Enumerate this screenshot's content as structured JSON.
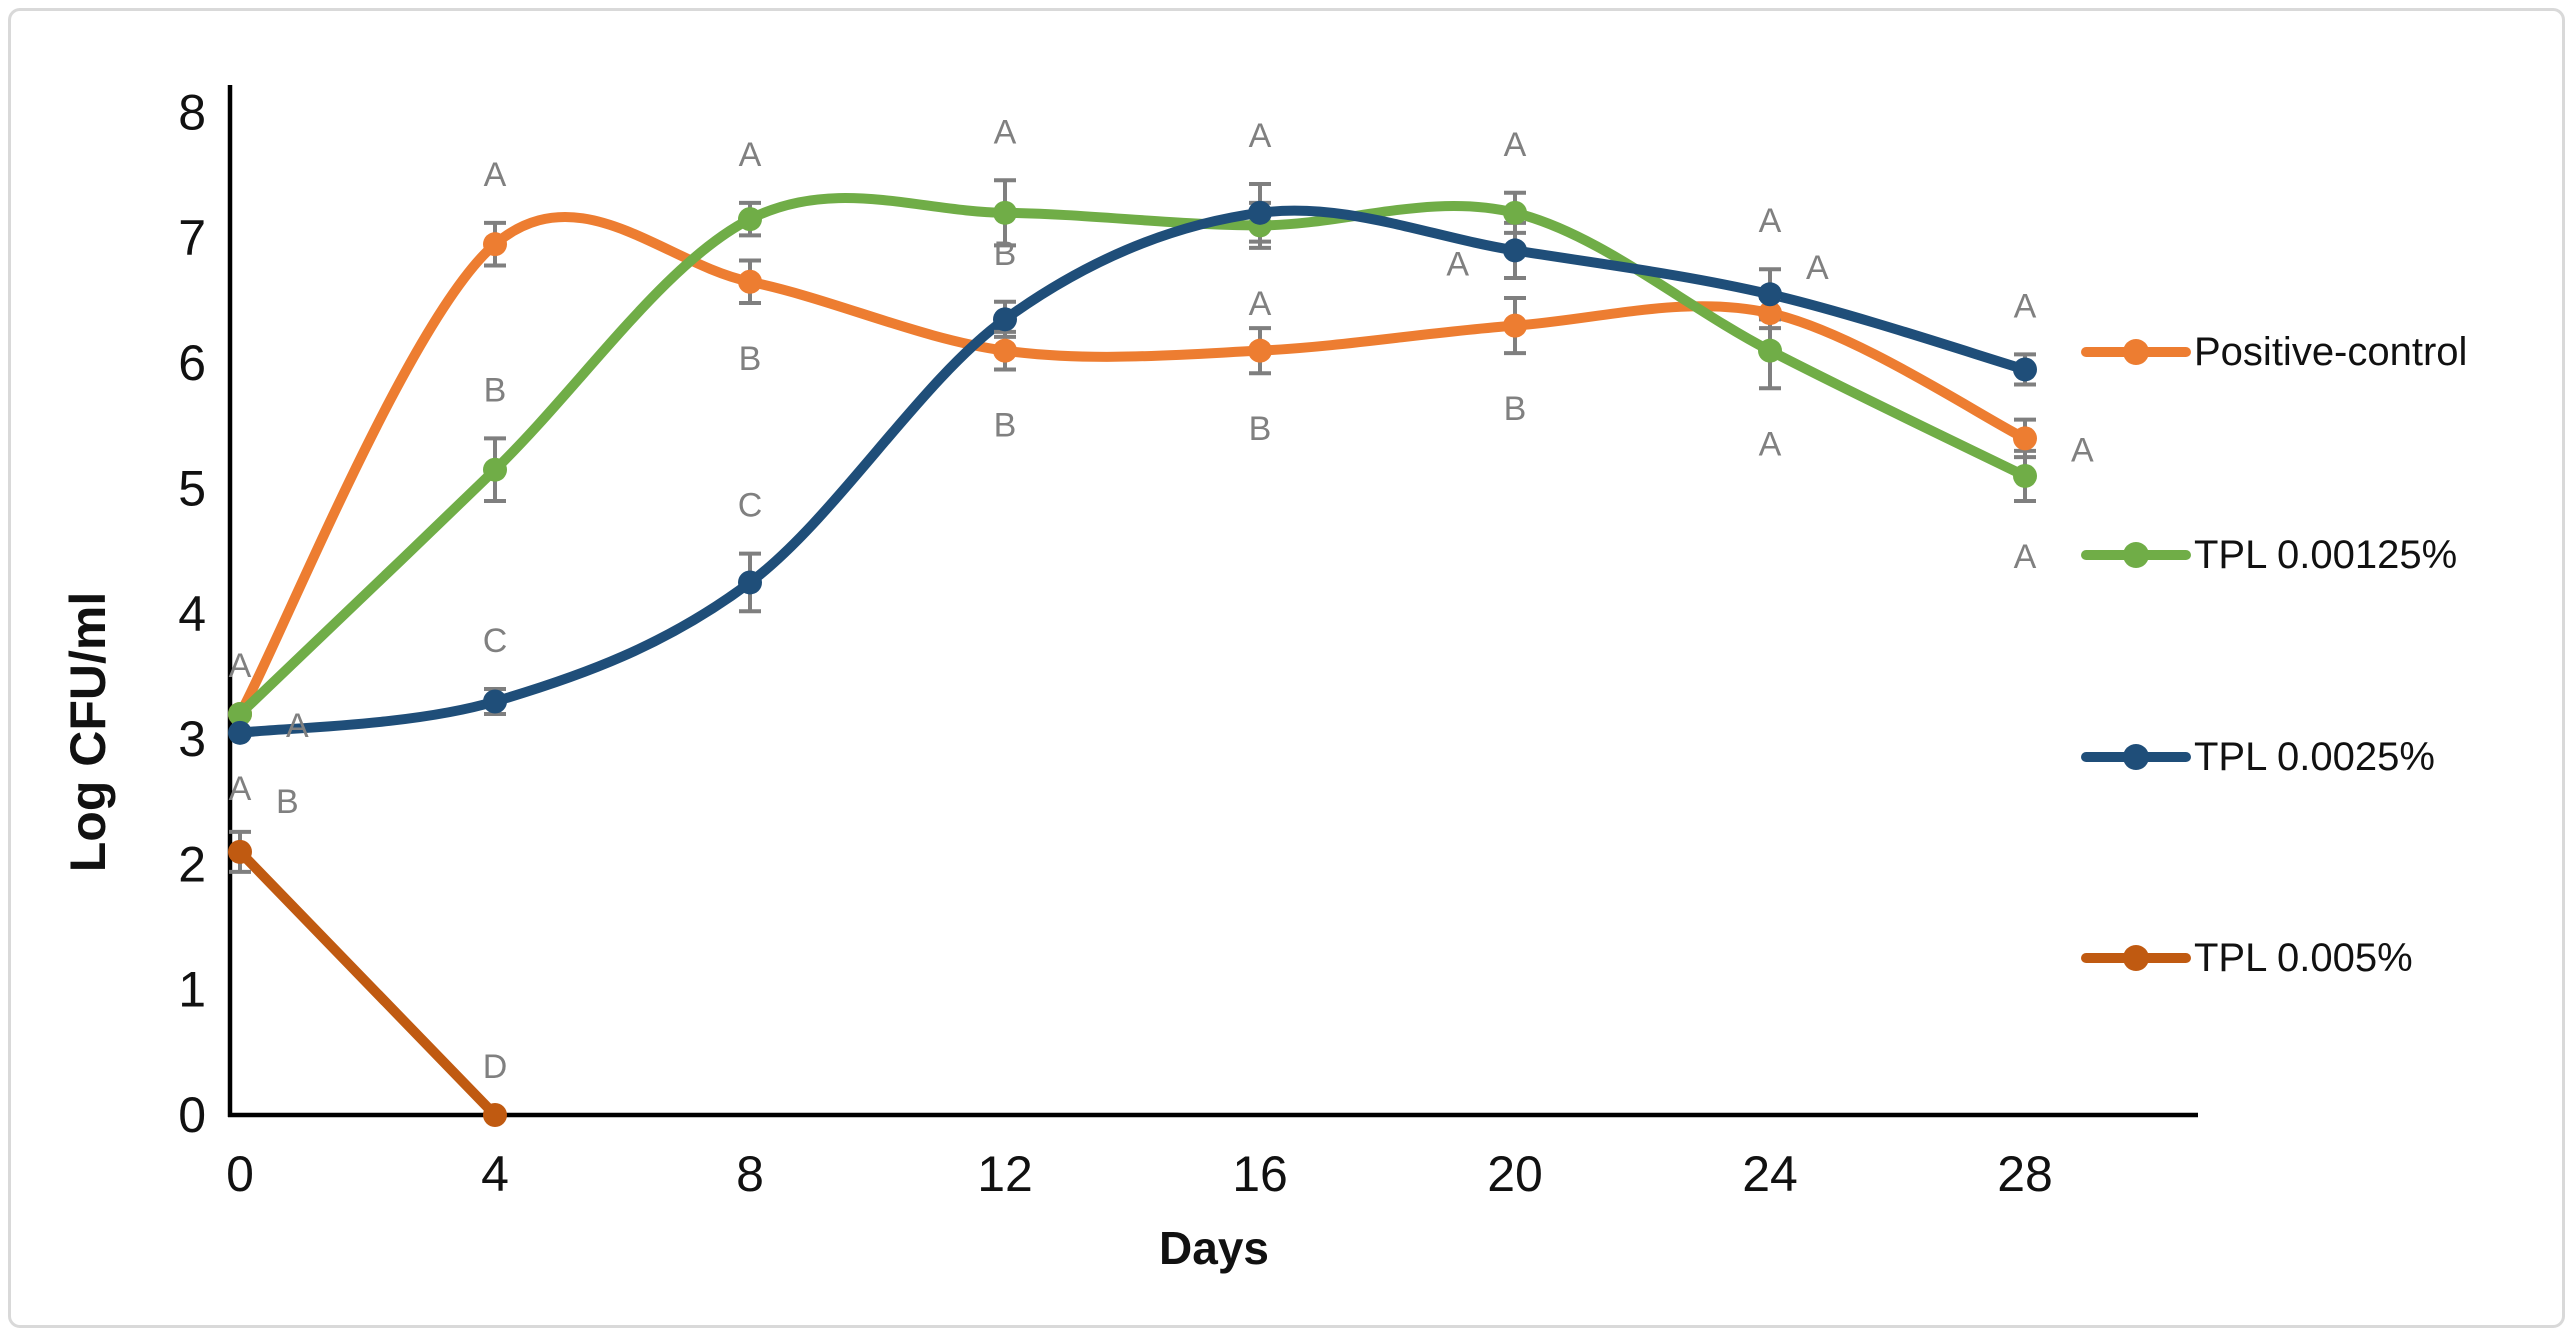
{
  "figure": {
    "background": "#ffffff",
    "frame_color": "#d9d9d9"
  },
  "chart_data": {
    "type": "line",
    "title": "",
    "xlabel": "Days",
    "ylabel": "Log CFU/ml",
    "x_ticks": [
      0,
      4,
      8,
      12,
      16,
      20,
      24,
      28
    ],
    "y_ticks": [
      0,
      1,
      2,
      3,
      4,
      5,
      6,
      7,
      8
    ],
    "ylim": [
      0,
      8
    ],
    "xlim": [
      0,
      28
    ],
    "grid": false,
    "legend_position": "right",
    "axis_color": "#000000",
    "error_bar_color": "#7f7f7f",
    "sig_letter_color": "#808080",
    "line_style": "smooth",
    "marker": "circle",
    "series": [
      {
        "name": "Positive-control",
        "color": "#ED7D31",
        "x": [
          0,
          4,
          8,
          12,
          16,
          20,
          24,
          28
        ],
        "values": [
          3.2,
          6.95,
          6.65,
          6.1,
          6.1,
          6.3,
          6.4,
          5.4
        ],
        "errors": [
          0,
          0.17,
          0.17,
          0.15,
          0.18,
          0.22,
          0.12,
          0.15
        ],
        "sig_letters": [
          "A",
          "A",
          "B",
          "B",
          "B",
          "B",
          "A",
          "A"
        ],
        "letter_placements": [
          "above",
          "above",
          "below",
          "below",
          "below",
          "below",
          "above-right",
          "right"
        ]
      },
      {
        "name": "TPL 0.00125%",
        "color": "#70AD47",
        "x": [
          0,
          4,
          8,
          12,
          16,
          20,
          24,
          28
        ],
        "values": [
          3.2,
          5.15,
          7.15,
          7.2,
          7.1,
          7.2,
          6.1,
          5.1
        ],
        "errors": [
          0,
          0.25,
          0.13,
          0.26,
          0.18,
          0.16,
          0.3,
          0.2
        ],
        "sig_letters": [
          "A",
          "B",
          "A",
          "A",
          "A",
          "A",
          "A",
          "A"
        ],
        "letter_placements": [
          "right",
          "above",
          "above",
          "above",
          "below",
          "above",
          "below",
          "below"
        ]
      },
      {
        "name": "TPL 0.0025%",
        "color": "#1F4E79",
        "x": [
          0,
          4,
          8,
          12,
          16,
          20,
          24,
          28
        ],
        "values": [
          3.05,
          3.3,
          4.25,
          6.35,
          7.2,
          6.9,
          6.55,
          5.95
        ],
        "errors": [
          0,
          0.1,
          0.23,
          0.14,
          0.23,
          0.22,
          0.2,
          0.12
        ],
        "sig_letters": [
          "A",
          "C",
          "C",
          "B",
          "A",
          "A",
          "A",
          "A"
        ],
        "letter_placements": [
          "below",
          "above",
          "above",
          "above",
          "above",
          "left",
          "above",
          "above"
        ]
      },
      {
        "name": "TPL 0.005%",
        "color": "#C05A11",
        "x": [
          0,
          4
        ],
        "values": [
          2.1,
          0
        ],
        "errors": [
          0.16,
          0
        ],
        "sig_letters": [
          "B",
          "D"
        ],
        "letter_placements": [
          "above-right",
          "above"
        ]
      }
    ]
  }
}
